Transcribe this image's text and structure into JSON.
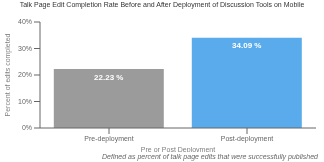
{
  "chart_data": {
    "type": "bar",
    "title": "Talk Page Edit Completion Rate Before and After Deployment of Discussion Tools on Mobile",
    "xlabel": "Pre or Post Deployment",
    "ylabel": "Percent of edits completed",
    "footnote": "Defined as percent of talk page edits that were successfully published",
    "categories": [
      "Pre-deployment",
      "Post-deployment"
    ],
    "values": [
      22.23,
      34.09
    ],
    "value_labels": [
      "22.23 %",
      "34.09 %"
    ],
    "data_labels": true,
    "colors": [
      "#9b9b9b",
      "#5aabeb"
    ],
    "ylim": [
      0,
      40
    ],
    "yticks": [
      {
        "value": 0,
        "label": "0%"
      },
      {
        "value": 10,
        "label": "10%"
      },
      {
        "value": 20,
        "label": "20%"
      },
      {
        "value": 30,
        "label": "30%"
      },
      {
        "value": 40,
        "label": "40%"
      }
    ],
    "grid": false
  }
}
